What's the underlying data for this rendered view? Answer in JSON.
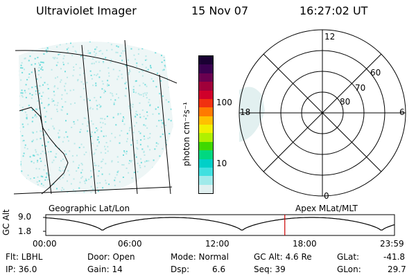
{
  "header": {
    "instrument": "Ultraviolet Imager",
    "date": "15 Nov 07",
    "time": "16:27:02 UT"
  },
  "colorbar": {
    "unit_label": "photon cm⁻²s⁻¹",
    "ticks": [
      "100",
      "10"
    ],
    "colors": [
      "#1a0033",
      "#3a0050",
      "#6a0050",
      "#a0003a",
      "#d0002a",
      "#f03010",
      "#ff7a00",
      "#ffc000",
      "#f0f000",
      "#b0f000",
      "#40d800",
      "#00d880",
      "#00d0c8",
      "#40e0e0",
      "#a0eaea",
      "#e0f0f0"
    ]
  },
  "left_panel": {
    "label": "Geographic Lat/Lon"
  },
  "right_panel": {
    "label": "Apex MLat/MLT",
    "mlt_labels": {
      "top": "12",
      "left": "18",
      "right": "6",
      "bottom": "0"
    },
    "lat_labels": [
      "60",
      "70",
      "80"
    ]
  },
  "altitude_plot": {
    "ylabel": "GC Alt",
    "yticks": [
      "9.0",
      "1.8"
    ],
    "xticks": [
      "00:00",
      "06:00",
      "12:00",
      "18:00",
      "23:59"
    ],
    "current_time_marker_hours": 16.45,
    "curve_color": "#000000",
    "marker_color": "#cc0000"
  },
  "status": {
    "filter": "Flt: LBHL",
    "ip": "IP: 36.0",
    "door": "Door: Open",
    "gain": "Gain: 14",
    "mode": "Mode: Normal",
    "dsp_label": "Dsp:",
    "dsp_value": "6.6",
    "gc_alt": "GC Alt: 4.6 Re",
    "seq": "Seq: 39",
    "glat_label": "GLat:",
    "glat_value": "-41.8",
    "glon_label": "GLon:",
    "glon_value": "29.7"
  }
}
